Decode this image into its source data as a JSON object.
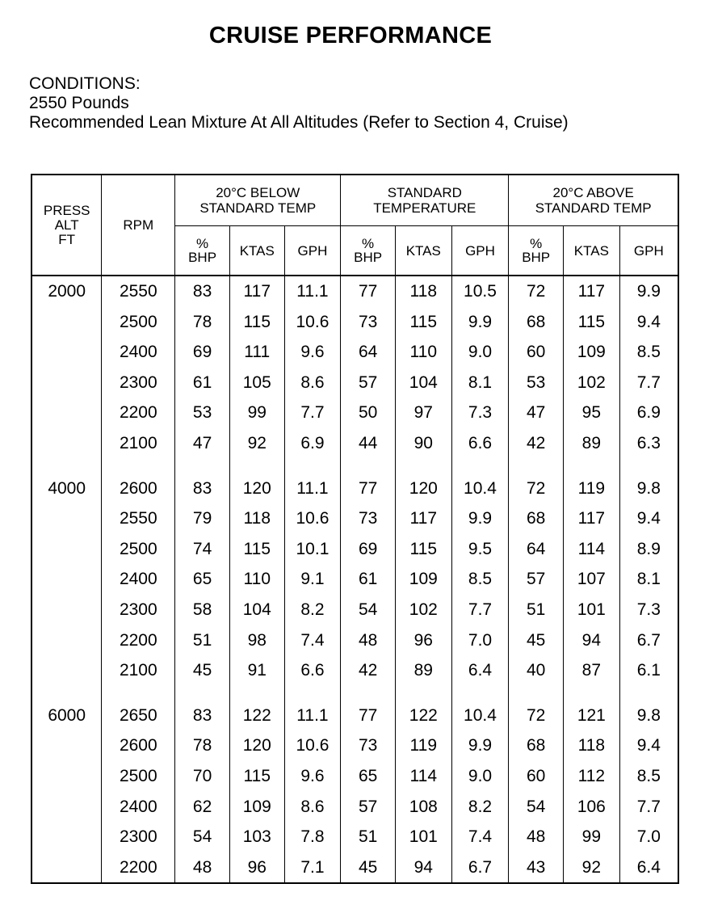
{
  "title": "CRUISE PERFORMANCE",
  "conditions": {
    "heading": "CONDITIONS:",
    "items": [
      "2550 Pounds",
      "Recommended Lean Mixture At All Altitudes (Refer to Section 4, Cruise)"
    ]
  },
  "table": {
    "headers": {
      "press_alt": [
        "PRESS",
        "ALT",
        "FT"
      ],
      "rpm": "RPM",
      "groups": [
        [
          "20°C BELOW",
          "STANDARD TEMP"
        ],
        [
          "STANDARD",
          "TEMPERATURE"
        ],
        [
          "20°C ABOVE",
          "STANDARD TEMP"
        ]
      ],
      "sub": [
        [
          "%",
          "BHP"
        ],
        "KTAS",
        "GPH"
      ]
    },
    "blocks": [
      {
        "alt": "2000",
        "rows": [
          [
            "2550",
            "83",
            "117",
            "11.1",
            "77",
            "118",
            "10.5",
            "72",
            "117",
            "9.9"
          ],
          [
            "2500",
            "78",
            "115",
            "10.6",
            "73",
            "115",
            "9.9",
            "68",
            "115",
            "9.4"
          ],
          [
            "2400",
            "69",
            "111",
            "9.6",
            "64",
            "110",
            "9.0",
            "60",
            "109",
            "8.5"
          ],
          [
            "2300",
            "61",
            "105",
            "8.6",
            "57",
            "104",
            "8.1",
            "53",
            "102",
            "7.7"
          ],
          [
            "2200",
            "53",
            "99",
            "7.7",
            "50",
            "97",
            "7.3",
            "47",
            "95",
            "6.9"
          ],
          [
            "2100",
            "47",
            "92",
            "6.9",
            "44",
            "90",
            "6.6",
            "42",
            "89",
            "6.3"
          ]
        ]
      },
      {
        "alt": "4000",
        "rows": [
          [
            "2600",
            "83",
            "120",
            "11.1",
            "77",
            "120",
            "10.4",
            "72",
            "119",
            "9.8"
          ],
          [
            "2550",
            "79",
            "118",
            "10.6",
            "73",
            "117",
            "9.9",
            "68",
            "117",
            "9.4"
          ],
          [
            "2500",
            "74",
            "115",
            "10.1",
            "69",
            "115",
            "9.5",
            "64",
            "114",
            "8.9"
          ],
          [
            "2400",
            "65",
            "110",
            "9.1",
            "61",
            "109",
            "8.5",
            "57",
            "107",
            "8.1"
          ],
          [
            "2300",
            "58",
            "104",
            "8.2",
            "54",
            "102",
            "7.7",
            "51",
            "101",
            "7.3"
          ],
          [
            "2200",
            "51",
            "98",
            "7.4",
            "48",
            "96",
            "7.0",
            "45",
            "94",
            "6.7"
          ],
          [
            "2100",
            "45",
            "91",
            "6.6",
            "42",
            "89",
            "6.4",
            "40",
            "87",
            "6.1"
          ]
        ]
      },
      {
        "alt": "6000",
        "rows": [
          [
            "2650",
            "83",
            "122",
            "11.1",
            "77",
            "122",
            "10.4",
            "72",
            "121",
            "9.8"
          ],
          [
            "2600",
            "78",
            "120",
            "10.6",
            "73",
            "119",
            "9.9",
            "68",
            "118",
            "9.4"
          ],
          [
            "2500",
            "70",
            "115",
            "9.6",
            "65",
            "114",
            "9.0",
            "60",
            "112",
            "8.5"
          ],
          [
            "2400",
            "62",
            "109",
            "8.6",
            "57",
            "108",
            "8.2",
            "54",
            "106",
            "7.7"
          ],
          [
            "2300",
            "54",
            "103",
            "7.8",
            "51",
            "101",
            "7.4",
            "48",
            "99",
            "7.0"
          ],
          [
            "2200",
            "48",
            "96",
            "7.1",
            "45",
            "94",
            "6.7",
            "43",
            "92",
            "6.4"
          ]
        ]
      }
    ]
  }
}
